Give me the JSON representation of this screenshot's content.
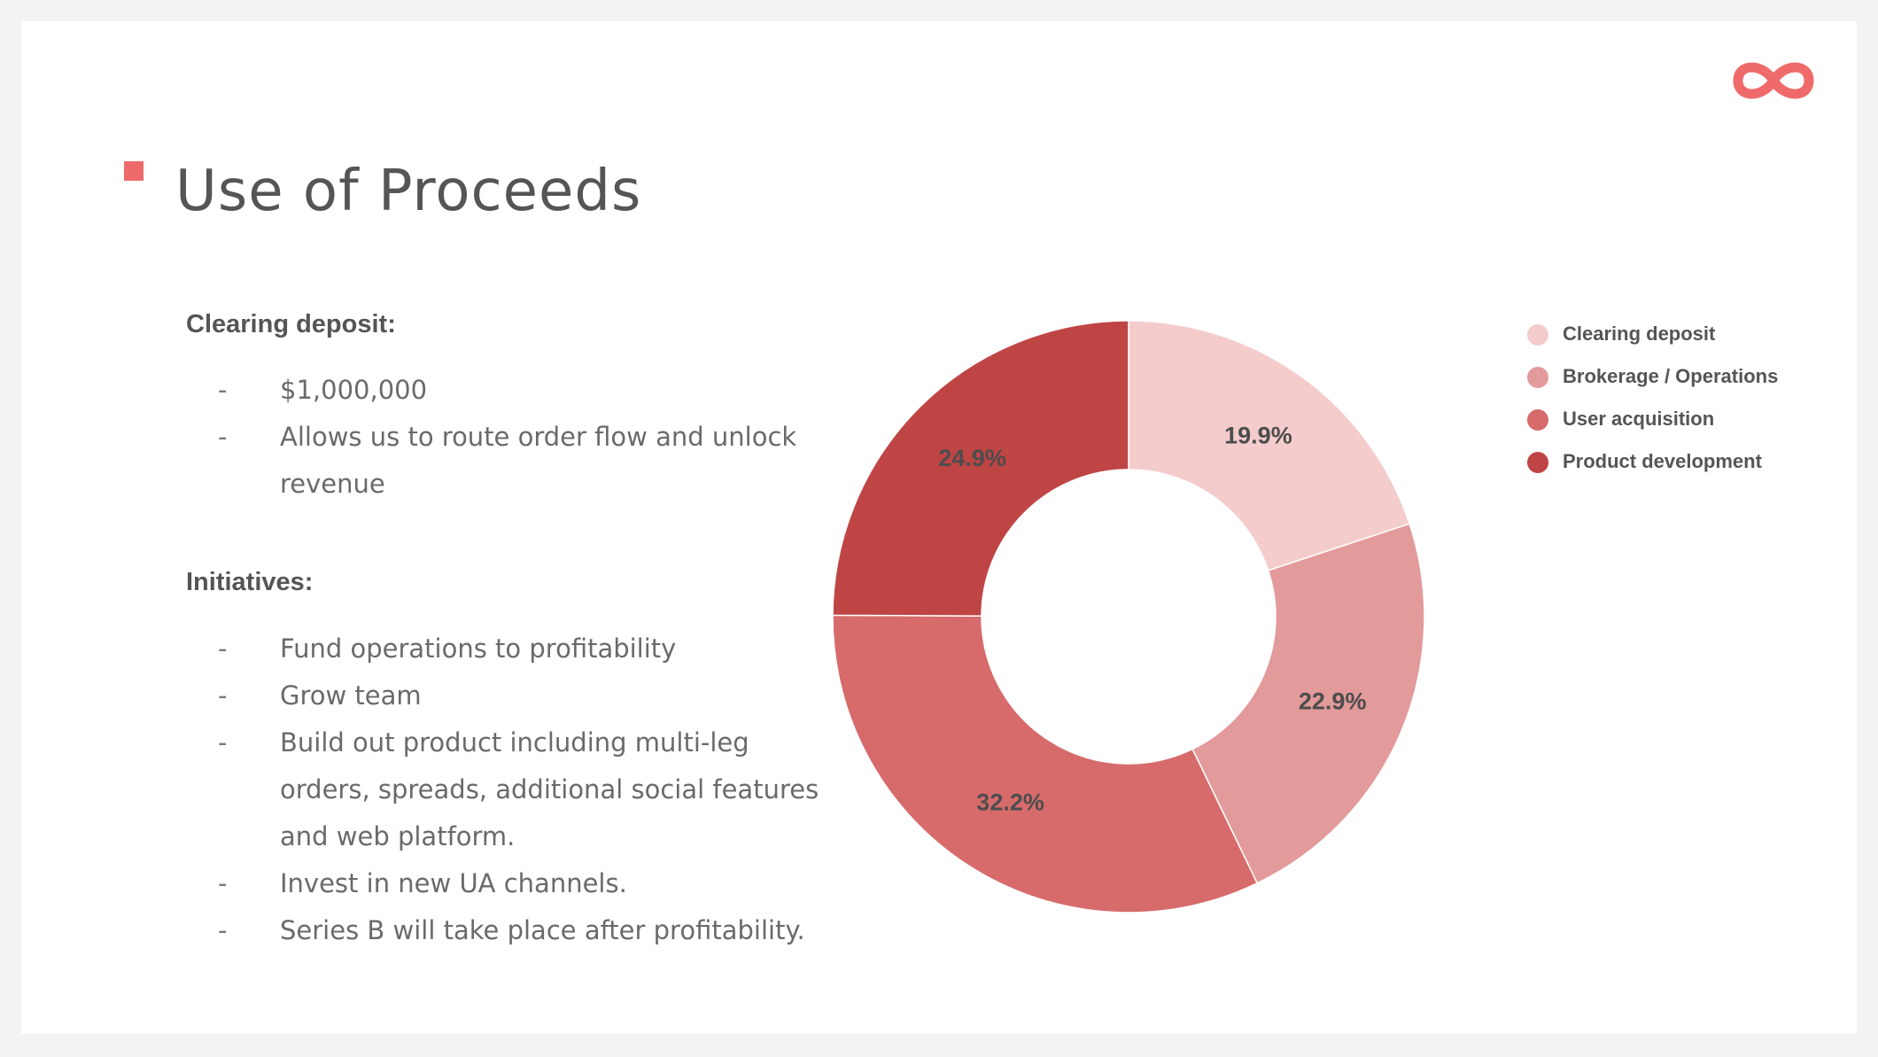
{
  "slide": {
    "title": "Use of Proceeds",
    "accent_color": "#ef6b6b",
    "logo_color": "#ef6b6b",
    "logo_icon": "infinity-icon"
  },
  "clearing": {
    "heading": "Clearing deposit:",
    "bullets": [
      "$1,000,000",
      "Allows us to route order flow and unlock revenue"
    ]
  },
  "initiatives": {
    "heading": "Initiatives:",
    "bullets": [
      "Fund operations to profitability",
      "Grow team",
      "Build out product including multi-leg orders, spreads, additional social features and web platform.",
      "Invest in new UA channels.",
      "Series B will take place after profitability."
    ]
  },
  "chart_data": {
    "type": "pie",
    "variant": "donut",
    "title": "",
    "legend_position": "right",
    "categories": [
      "Clearing deposit",
      "Brokerage / Operations",
      "User acquisition",
      "Product development"
    ],
    "values": [
      19.9,
      22.9,
      32.2,
      24.9
    ],
    "labels": [
      "19.9%",
      "22.9%",
      "32.2%",
      "24.9%"
    ],
    "colors": [
      "#f4cccc",
      "#e39a9a",
      "#d76b6b",
      "#bf4545"
    ]
  }
}
